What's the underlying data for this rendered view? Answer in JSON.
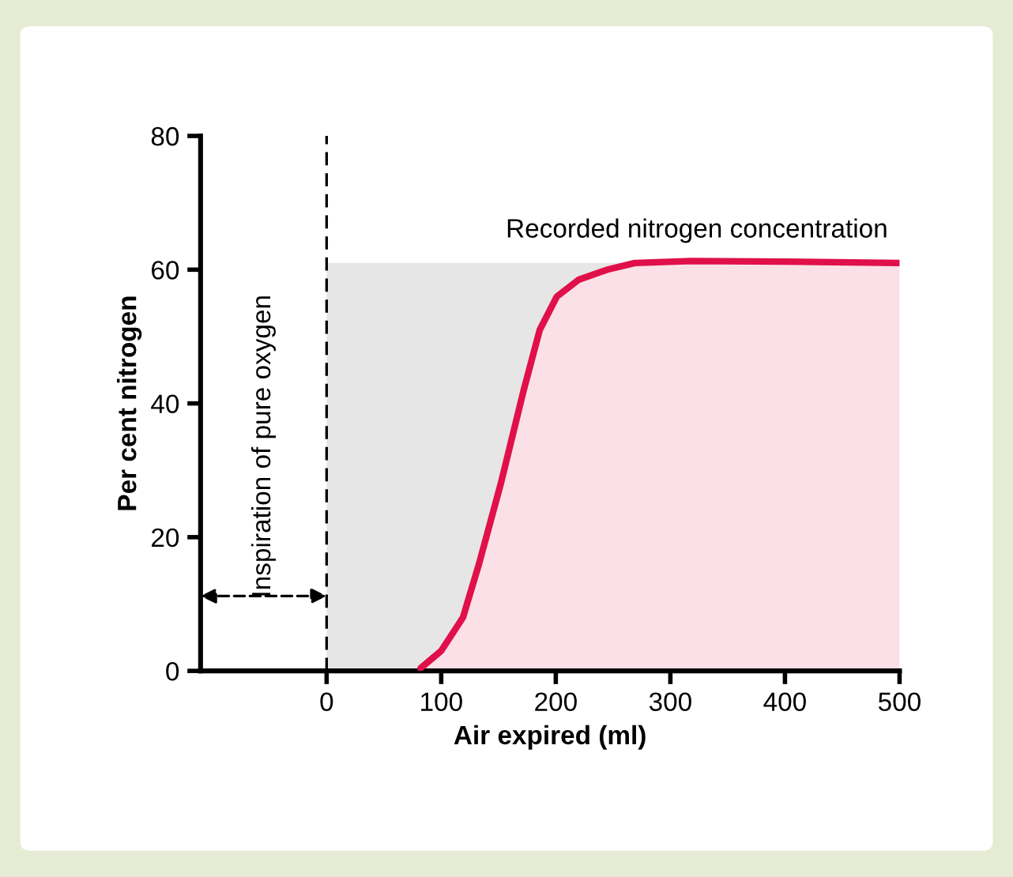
{
  "chart_data": {
    "type": "area",
    "xlabel": "Air expired (ml)",
    "ylabel": "Per cent nitrogen",
    "series": [
      {
        "color": "#e6e6e6",
        "x": [
          0,
          500
        ],
        "values": [
          61,
          61
        ]
      },
      {
        "color": "#e0104a",
        "x": [
          82,
          100,
          119,
          133,
          152,
          172,
          186,
          201,
          220,
          245,
          269,
          318,
          400,
          500
        ],
        "values": [
          0.4,
          3,
          8,
          16,
          28,
          42,
          51,
          56,
          58.5,
          60,
          61,
          61.3,
          61.2,
          61
        ]
      }
    ],
    "xlim": [
      -110,
      500
    ],
    "xticks": [
      0,
      100,
      200,
      300,
      400,
      500
    ],
    "ylim": [
      0,
      80
    ],
    "yticks": [
      0,
      20,
      40,
      60,
      80
    ],
    "ref_lines": [
      {
        "axis": "x",
        "value": 0,
        "line_style": "dashed",
        "color": "#000000"
      }
    ],
    "annotations": [
      "Inspiration of pure oxygen",
      "Recorded nitrogen concentration"
    ],
    "grid": false,
    "legend": false
  }
}
